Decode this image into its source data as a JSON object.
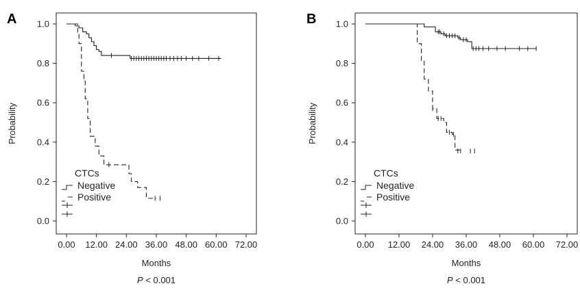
{
  "chart_data": [
    {
      "type": "line",
      "panel_label": "A",
      "xlabel": "Months",
      "ylabel": "Probability",
      "xlim": [
        0,
        72
      ],
      "ylim": [
        0,
        1
      ],
      "x_ticks": [
        "0.00",
        "12.00",
        "24.00",
        "36.00",
        "48.00",
        "60.00",
        "72.00"
      ],
      "y_ticks": [
        "0.0",
        "0.2",
        "0.4",
        "0.6",
        "0.8",
        "1.0"
      ],
      "p_prefix": "P",
      "p_value": " < 0.001",
      "legend": {
        "title": "CTCs",
        "entries": [
          "Negative",
          "Positive"
        ],
        "position": "bottom-left"
      },
      "series": [
        {
          "name": "Negative",
          "line_style": "solid",
          "steps": [
            [
              0,
              1.0
            ],
            [
              3.5,
              0.99
            ],
            [
              5,
              0.98
            ],
            [
              6.5,
              0.96
            ],
            [
              8,
              0.95
            ],
            [
              9,
              0.93
            ],
            [
              10,
              0.91
            ],
            [
              11,
              0.89
            ],
            [
              12,
              0.87
            ],
            [
              13,
              0.86
            ],
            [
              14,
              0.84
            ],
            [
              25.5,
              0.825
            ],
            [
              62,
              0.825
            ]
          ],
          "censored": [
            [
              18,
              0.84
            ],
            [
              26,
              0.825
            ],
            [
              27,
              0.825
            ],
            [
              28,
              0.825
            ],
            [
              29,
              0.825
            ],
            [
              30,
              0.825
            ],
            [
              31,
              0.825
            ],
            [
              32,
              0.825
            ],
            [
              33,
              0.825
            ],
            [
              34,
              0.825
            ],
            [
              35,
              0.825
            ],
            [
              36,
              0.825
            ],
            [
              37,
              0.825
            ],
            [
              38,
              0.825
            ],
            [
              39,
              0.825
            ],
            [
              40,
              0.825
            ],
            [
              41.5,
              0.825
            ],
            [
              43,
              0.825
            ],
            [
              44.5,
              0.825
            ],
            [
              46,
              0.825
            ],
            [
              48,
              0.825
            ],
            [
              50.5,
              0.825
            ],
            [
              53,
              0.825
            ],
            [
              57,
              0.825
            ],
            [
              61,
              0.825
            ]
          ]
        },
        {
          "name": "Positive",
          "line_style": "dashed",
          "steps": [
            [
              0,
              1.0
            ],
            [
              4.5,
              0.95
            ],
            [
              5,
              0.9
            ],
            [
              6,
              0.76
            ],
            [
              7,
              0.71
            ],
            [
              7.5,
              0.62
            ],
            [
              8.5,
              0.52
            ],
            [
              9.5,
              0.43
            ],
            [
              11.5,
              0.38
            ],
            [
              13,
              0.33
            ],
            [
              15,
              0.285
            ],
            [
              25,
              0.24
            ],
            [
              26,
              0.2
            ],
            [
              28.5,
              0.17
            ],
            [
              32,
              0.115
            ],
            [
              36,
              0.115
            ]
          ],
          "censored": [
            [
              17,
              0.285
            ],
            [
              35.5,
              0.115
            ],
            [
              37.5,
              0.115
            ]
          ]
        }
      ]
    },
    {
      "type": "line",
      "panel_label": "B",
      "xlabel": "Months",
      "ylabel": "Probability",
      "xlim": [
        0,
        72
      ],
      "ylim": [
        0,
        1
      ],
      "x_ticks": [
        "0.00",
        "12.00",
        "24.00",
        "36.00",
        "48.00",
        "60.00",
        "72.00"
      ],
      "y_ticks": [
        "0.0",
        "0.2",
        "0.4",
        "0.6",
        "0.8",
        "1.0"
      ],
      "p_prefix": "P",
      "p_value": " < 0.001",
      "legend": {
        "title": "CTCs",
        "entries": [
          "Negative",
          "Positive"
        ],
        "position": "bottom-left"
      },
      "series": [
        {
          "name": "Negative",
          "line_style": "solid",
          "steps": [
            [
              0,
              1.0
            ],
            [
              21,
              0.985
            ],
            [
              25,
              0.96
            ],
            [
              27,
              0.95
            ],
            [
              28.5,
              0.94
            ],
            [
              33,
              0.93
            ],
            [
              34,
              0.92
            ],
            [
              36.5,
              0.91
            ],
            [
              38,
              0.875
            ],
            [
              61,
              0.875
            ]
          ],
          "censored": [
            [
              26,
              0.96
            ],
            [
              26.5,
              0.96
            ],
            [
              28,
              0.95
            ],
            [
              29,
              0.94
            ],
            [
              30,
              0.94
            ],
            [
              31,
              0.94
            ],
            [
              32,
              0.94
            ],
            [
              33.5,
              0.93
            ],
            [
              35,
              0.92
            ],
            [
              36,
              0.92
            ],
            [
              38.5,
              0.875
            ],
            [
              39.5,
              0.875
            ],
            [
              40.5,
              0.875
            ],
            [
              42,
              0.875
            ],
            [
              44,
              0.875
            ],
            [
              47,
              0.875
            ],
            [
              50,
              0.875
            ],
            [
              55,
              0.875
            ],
            [
              58,
              0.875
            ],
            [
              61,
              0.875
            ]
          ]
        },
        {
          "name": "Positive",
          "line_style": "dashed",
          "steps": [
            [
              18,
              1.0
            ],
            [
              18.5,
              0.9
            ],
            [
              20,
              0.81
            ],
            [
              21,
              0.72
            ],
            [
              22.5,
              0.66
            ],
            [
              24,
              0.57
            ],
            [
              25.5,
              0.52
            ],
            [
              28,
              0.5
            ],
            [
              29,
              0.45
            ],
            [
              31,
              0.44
            ],
            [
              32,
              0.36
            ],
            [
              34,
              0.355
            ]
          ],
          "censored": [
            [
              24,
              0.57
            ],
            [
              26,
              0.52
            ],
            [
              27,
              0.52
            ],
            [
              30,
              0.45
            ],
            [
              31.5,
              0.44
            ],
            [
              33,
              0.355
            ],
            [
              34,
              0.355
            ],
            [
              37.5,
              0.355
            ],
            [
              39,
              0.355
            ]
          ]
        }
      ]
    }
  ]
}
